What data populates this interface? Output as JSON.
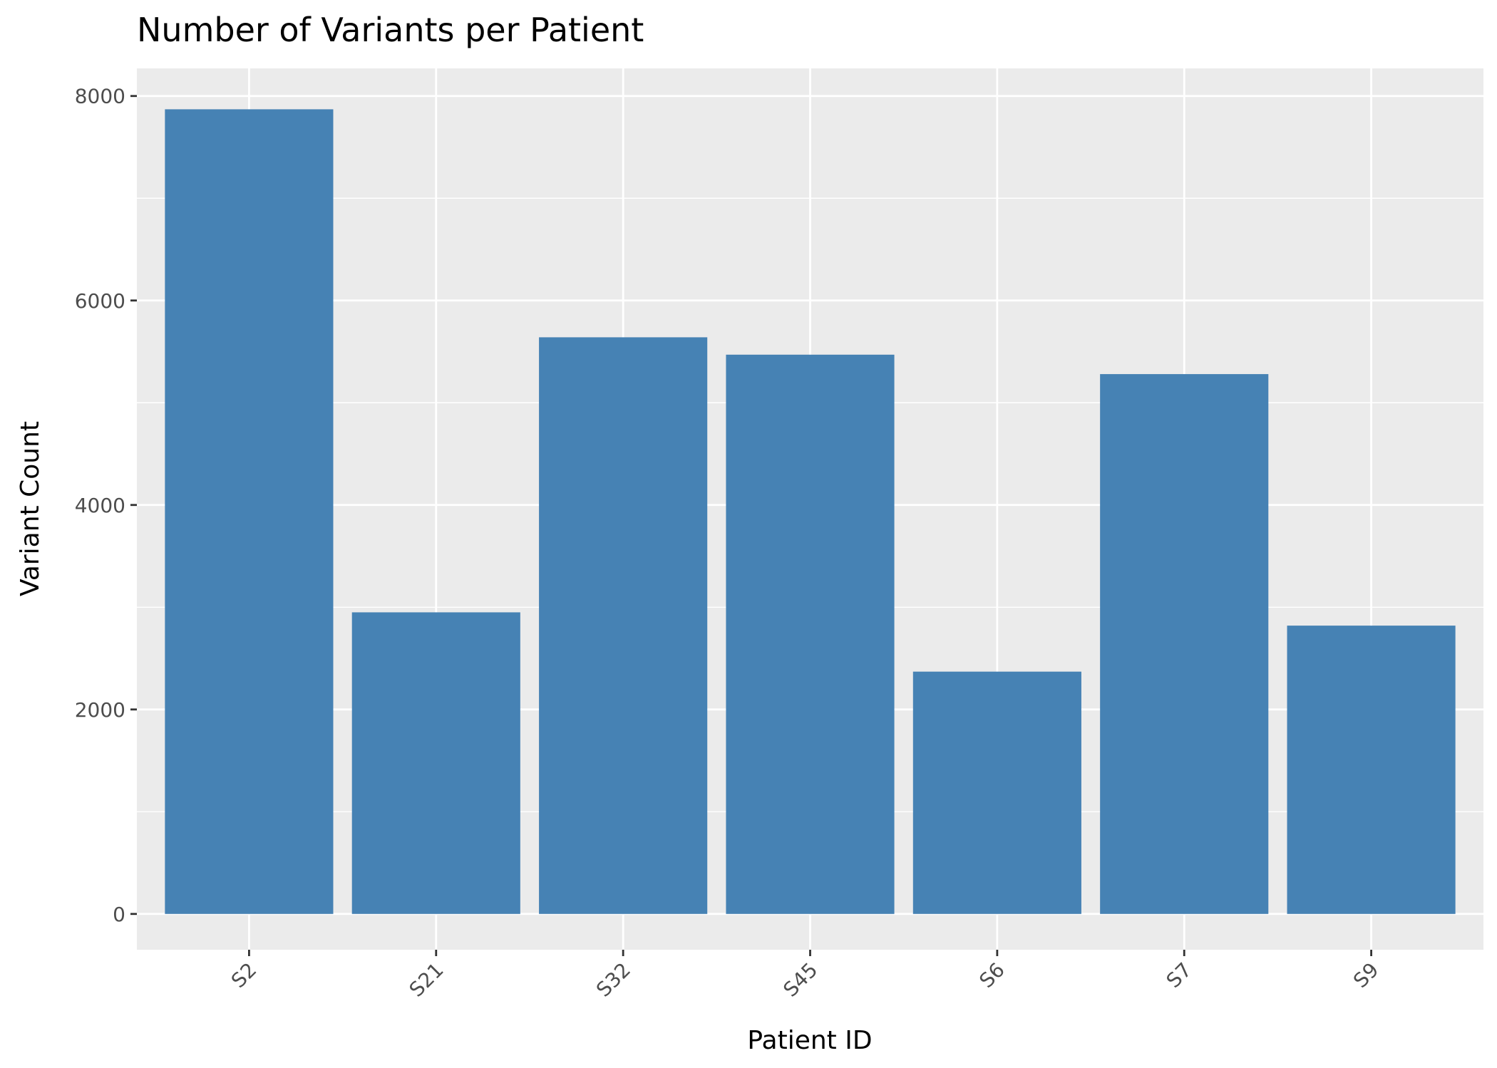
{
  "chart_data": {
    "type": "bar",
    "title": "Number of Variants per Patient",
    "xlabel": "Patient ID",
    "ylabel": "Variant Count",
    "categories": [
      "S2",
      "S21",
      "S32",
      "S45",
      "S6",
      "S7",
      "S9"
    ],
    "values": [
      7870,
      2950,
      5640,
      5470,
      2370,
      5280,
      2820
    ],
    "ylim": [
      -350,
      8270
    ],
    "yticks": [
      "0",
      "2000",
      "4000",
      "6000",
      "8000"
    ],
    "grid": true,
    "colors": {
      "bar": "#4682b4",
      "panel": "#ebebeb",
      "grid": "#ffffff"
    }
  }
}
